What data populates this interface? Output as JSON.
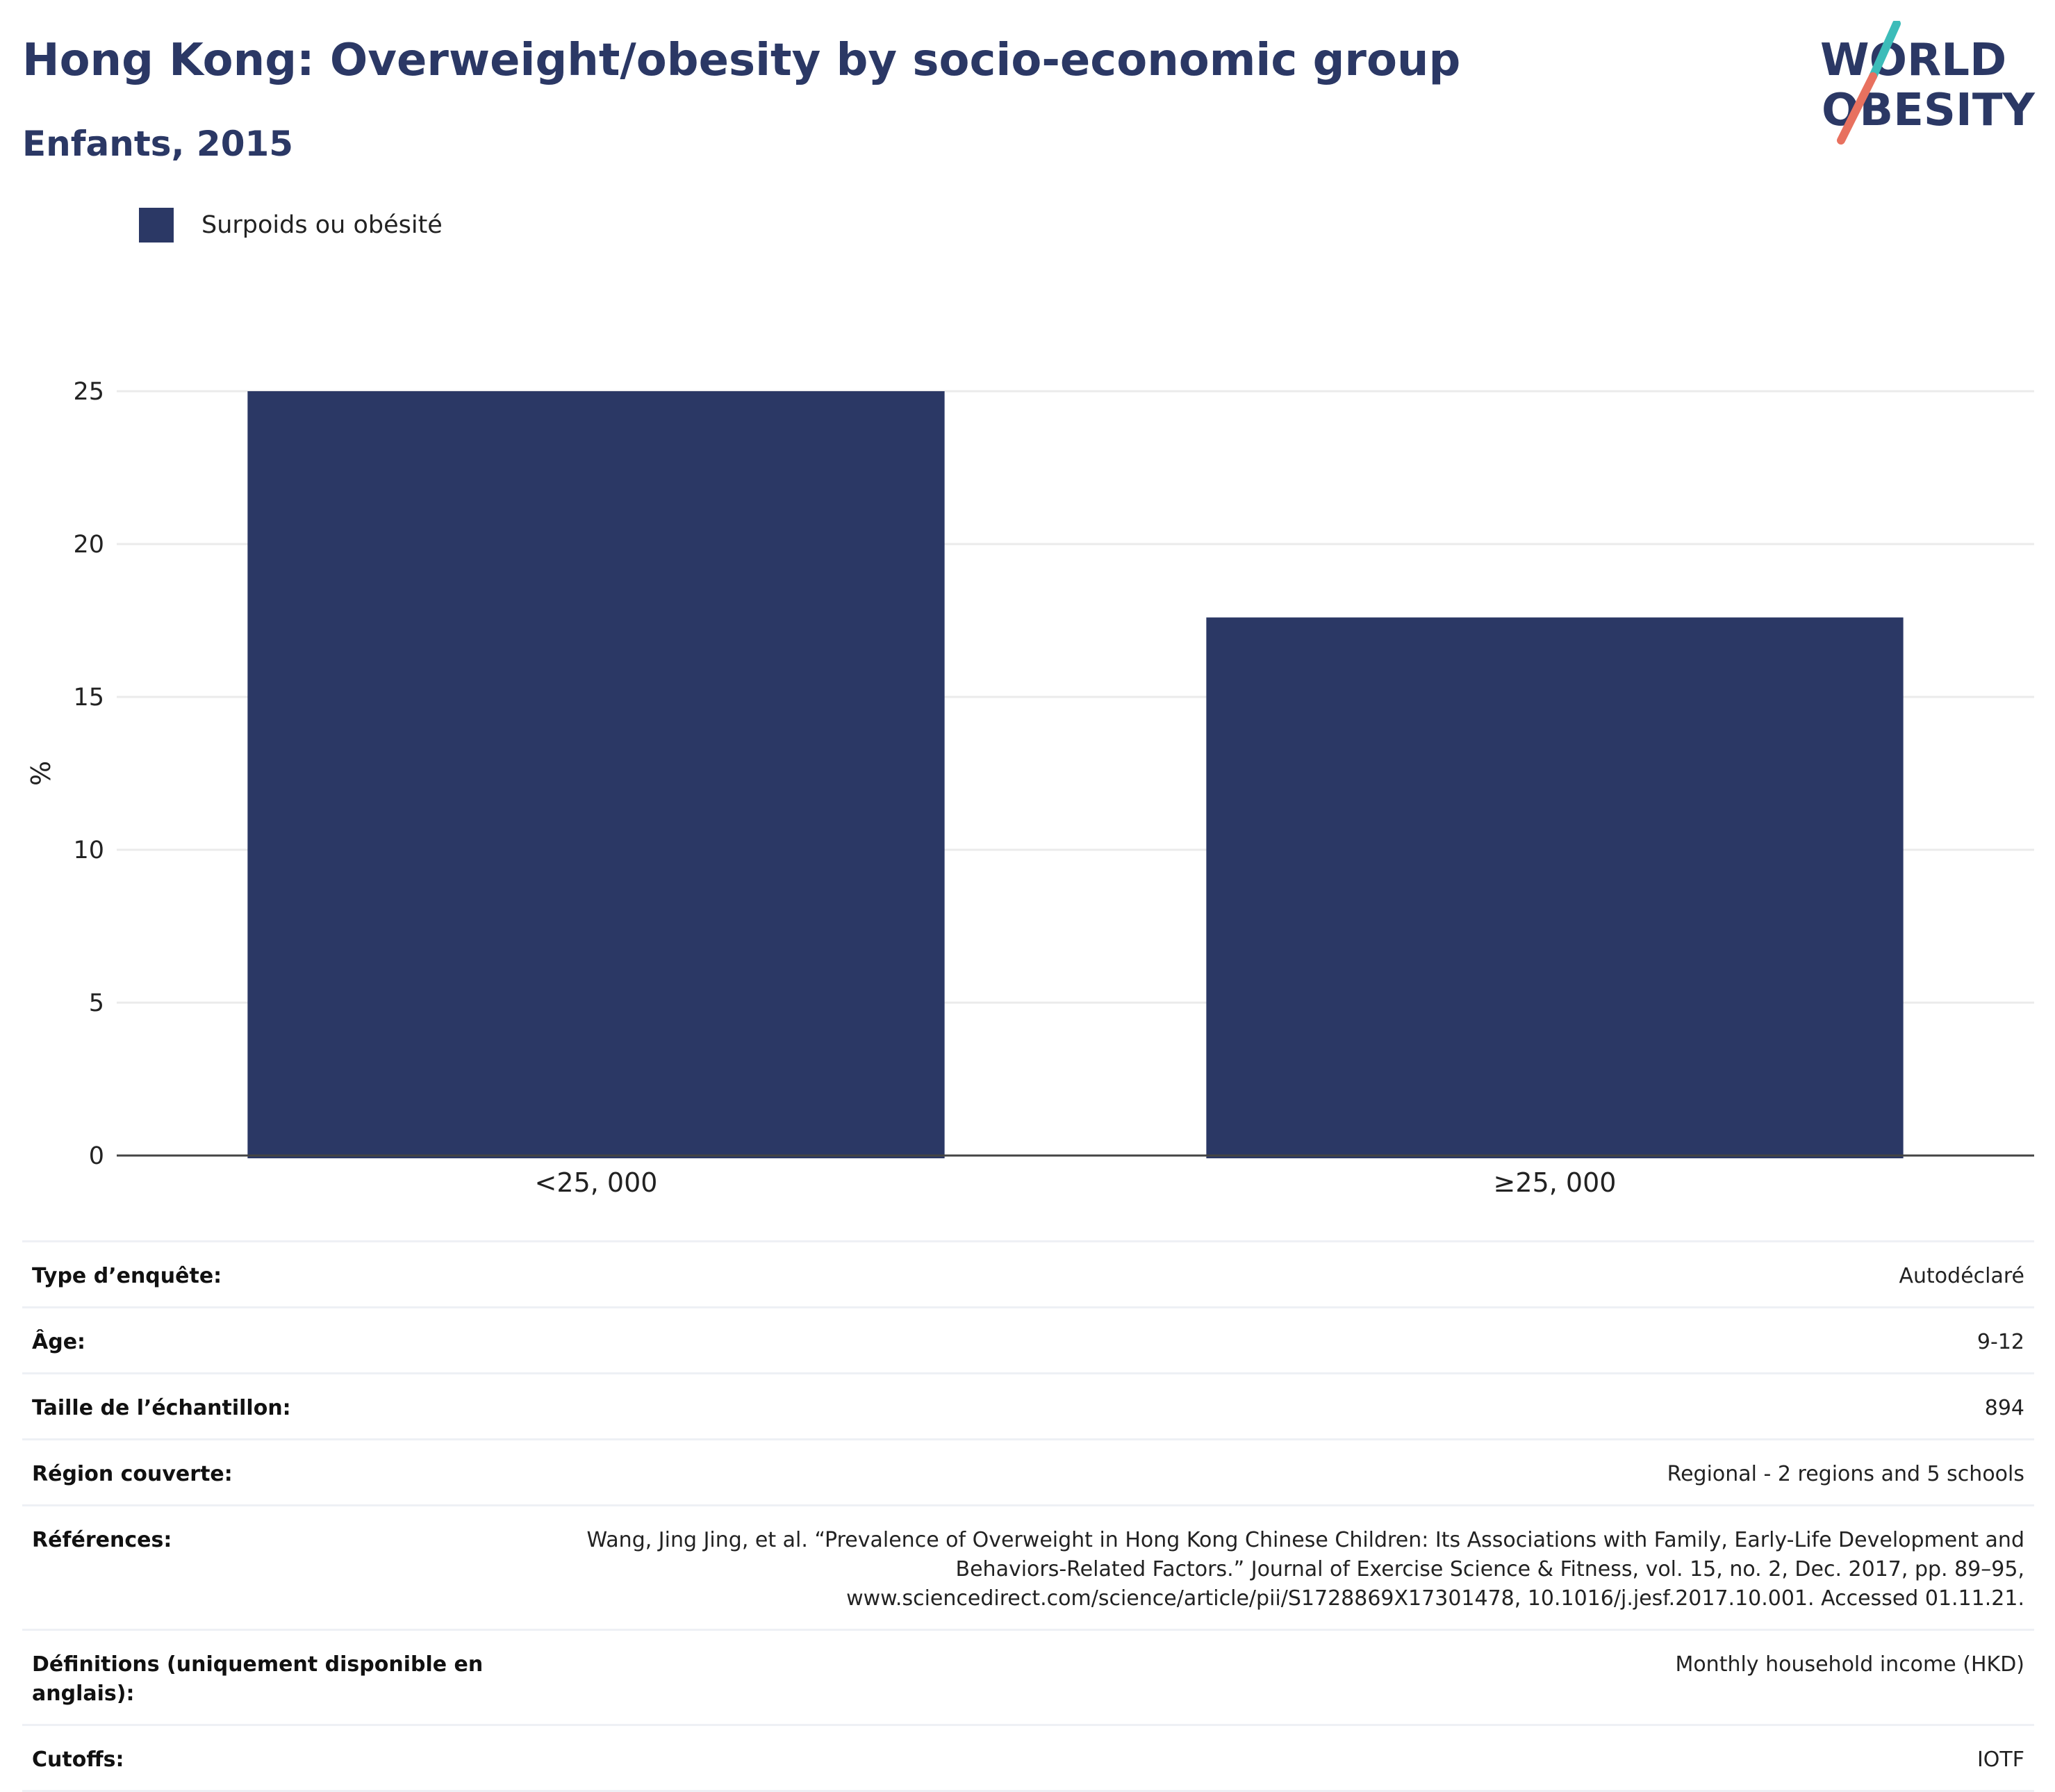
{
  "header": {
    "title": "Hong Kong: Overweight/obesity by socio-economic group",
    "subtitle": "Enfants, 2015",
    "logo": {
      "line1": "WORLD",
      "line2": "OBESITY"
    }
  },
  "legend": {
    "label": "Surpoids ou obésité"
  },
  "colors": {
    "bar": "#2b3865",
    "title": "#2b3865",
    "grid": "#ebebeb",
    "logo_teal": "#3cbcb9",
    "logo_coral": "#e8715f"
  },
  "chart_data": {
    "type": "bar",
    "categories": [
      "<25, 000",
      "≥25, 000"
    ],
    "series": [
      {
        "name": "Surpoids ou obésité",
        "values": [
          25.0,
          17.6
        ]
      }
    ],
    "title": "Hong Kong: Overweight/obesity by socio-economic group",
    "subtitle": "Enfants, 2015",
    "xlabel": "",
    "ylabel": "%",
    "ylim": [
      0,
      25
    ],
    "yticks": [
      0,
      5,
      10,
      15,
      20,
      25
    ],
    "grid": true,
    "legend_position": "top-left"
  },
  "info": [
    {
      "key": "Type d’enquête:",
      "value": "Autodéclaré"
    },
    {
      "key": "Âge:",
      "value": "9-12"
    },
    {
      "key": "Taille de l’échantillon:",
      "value": "894"
    },
    {
      "key": "Région couverte:",
      "value": "Regional - 2 regions and 5 schools"
    },
    {
      "key": "Références:",
      "value": "Wang, Jing Jing, et al. “Prevalence of Overweight in Hong Kong Chinese Children: Its Associations with Family, Early-Life Development and Behaviors-Related Factors.” Journal of Exercise Science & Fitness, vol. 15, no. 2, Dec. 2017, pp. 89–95, www.sciencedirect.com/science/article/pii/S1728869X17301478, 10.1016/j.jesf.2017.10.001. Accessed 01.11.21."
    },
    {
      "key": "Définitions (uniquement disponible en anglais):",
      "value": "Monthly household income (HKD)"
    },
    {
      "key": "Cutoffs:",
      "value": "IOTF"
    }
  ]
}
